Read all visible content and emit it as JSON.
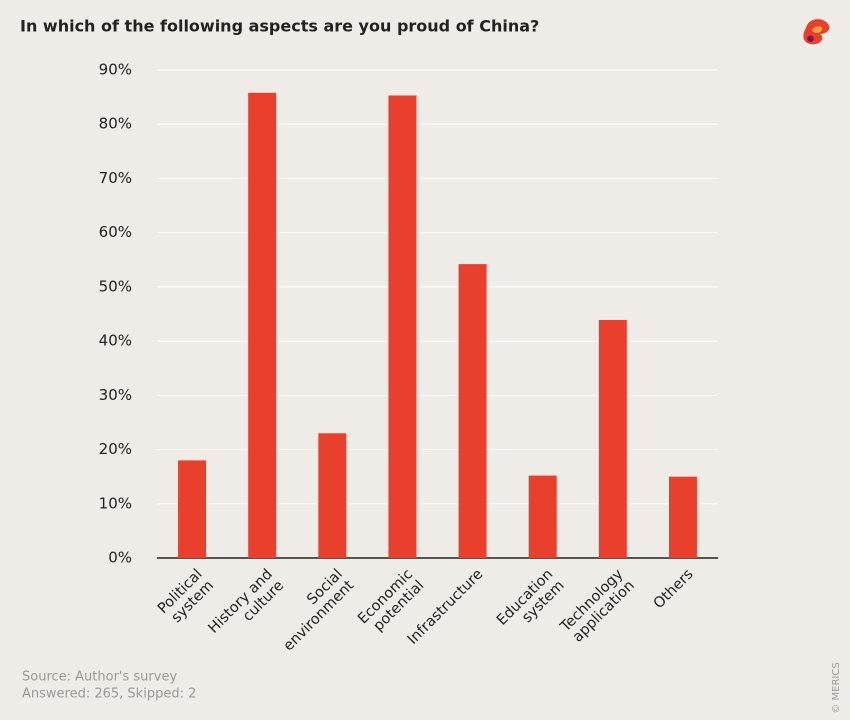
{
  "chart_data": {
    "type": "bar",
    "title": "In which of the following aspects are you proud of China?",
    "categories": [
      [
        "Political",
        "system"
      ],
      [
        "History and",
        "culture"
      ],
      [
        "Social",
        "environment"
      ],
      [
        "Economic",
        "potential"
      ],
      [
        "Infrastructure"
      ],
      [
        "Education",
        "system"
      ],
      [
        "Technology",
        "application"
      ],
      [
        "Others"
      ]
    ],
    "values": [
      18.0,
      85.8,
      23.0,
      85.3,
      54.2,
      15.2,
      43.9,
      15.0
    ],
    "color": "#e8402d",
    "ylim": [
      0,
      90
    ],
    "yticks": [
      {
        "value": 0,
        "label": "0%"
      },
      {
        "value": 10,
        "label": "10%"
      },
      {
        "value": 20,
        "label": "20%"
      },
      {
        "value": 30,
        "label": "30%"
      },
      {
        "value": 40,
        "label": "40%"
      },
      {
        "value": 50,
        "label": "50%"
      },
      {
        "value": 60,
        "label": "60%"
      },
      {
        "value": 70,
        "label": "70%"
      },
      {
        "value": 80,
        "label": "80%"
      },
      {
        "value": 90,
        "label": "90%"
      }
    ],
    "grid": true,
    "source": "Source: Author's survey",
    "note": "Answered: 265, Skipped: 2",
    "credit": "© MERICS"
  }
}
